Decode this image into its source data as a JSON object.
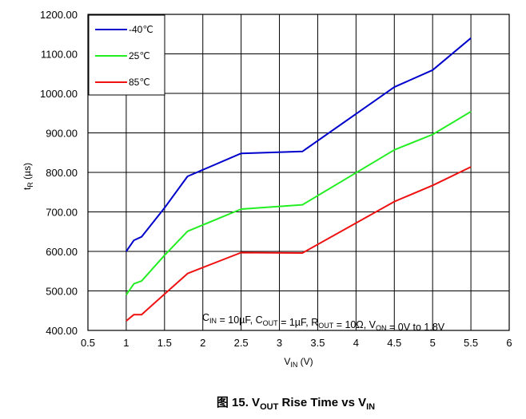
{
  "chart_data": {
    "type": "line",
    "title": "",
    "xlabel": "V_IN (V)",
    "ylabel": "t_R (µs)",
    "xlim": [
      0.5,
      6
    ],
    "ylim": [
      400,
      1200
    ],
    "x_ticks": [
      "0.5",
      "1",
      "1.5",
      "2",
      "2.5",
      "3",
      "3.5",
      "4",
      "4.5",
      "5",
      "5.5",
      "6"
    ],
    "y_ticks": [
      "400.00",
      "500.00",
      "600.00",
      "700.00",
      "800.00",
      "900.00",
      "1000.00",
      "1100.00",
      "1200.00"
    ],
    "grid": true,
    "legend_position": "top-left",
    "series": [
      {
        "name": "-40℃",
        "color": "#0000cc",
        "x": [
          1.0,
          1.1,
          1.2,
          1.5,
          1.8,
          2.5,
          3.3,
          4.5,
          5.0,
          5.5
        ],
        "y": [
          600,
          628,
          637,
          710,
          790,
          848,
          853,
          1016,
          1059,
          1140
        ]
      },
      {
        "name": "25℃",
        "color": "#22ee22",
        "x": [
          1.0,
          1.1,
          1.2,
          1.5,
          1.8,
          2.5,
          3.3,
          4.5,
          5.0,
          5.5
        ],
        "y": [
          490,
          518,
          525,
          590,
          651,
          707,
          718,
          857,
          896,
          954
        ]
      },
      {
        "name": "85℃",
        "color": "#ee1111",
        "x": [
          1.0,
          1.1,
          1.2,
          1.5,
          1.8,
          2.5,
          3.3,
          4.5,
          5.0,
          5.5
        ],
        "y": [
          424,
          440,
          440,
          492,
          544,
          597,
          596,
          726,
          767,
          814
        ]
      }
    ],
    "annotation": {
      "parts": [
        {
          "t": "C",
          "s": "IN"
        },
        {
          "t": " = 10µF, C",
          "s": "OUT"
        },
        {
          "t": " = 1µF, R",
          "s": "OUT"
        },
        {
          "t": " = 10Ω, V",
          "s": "ON"
        },
        {
          "t": " = 0V to 1.8V",
          "s": ""
        }
      ]
    },
    "axis_text": {
      "ylabel_main": "t",
      "ylabel_sub": "R",
      "ylabel_rest": " (µs)",
      "xlabel_main": "V",
      "xlabel_sub": "IN",
      "xlabel_rest": " (V)"
    },
    "caption": {
      "prefix": "图 15. V",
      "sub1": "OUT",
      "middle": " Rise Time vs V",
      "sub2": "IN"
    }
  }
}
